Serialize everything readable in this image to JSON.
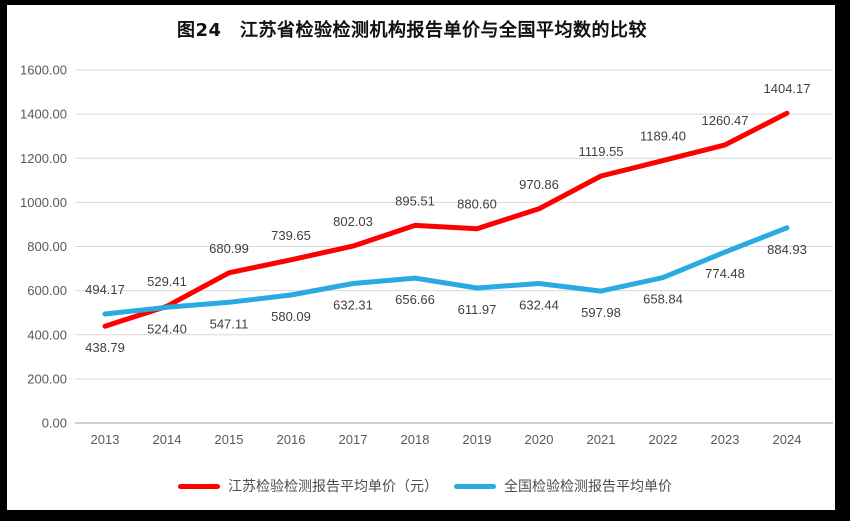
{
  "panel": {
    "background": "#ffffff",
    "border_color": "#000000"
  },
  "chart_data": {
    "type": "line",
    "title": "图24　江苏省检验检测机构报告单价与全国平均数的比较",
    "categories": [
      "2013",
      "2014",
      "2015",
      "2016",
      "2017",
      "2018",
      "2019",
      "2020",
      "2021",
      "2022",
      "2023",
      "2024"
    ],
    "series": [
      {
        "name": "江苏检验检测报告平均单价（元）",
        "color": "#fe0000",
        "values": [
          438.79,
          529.41,
          680.99,
          739.65,
          802.03,
          895.51,
          880.6,
          970.86,
          1119.55,
          1189.4,
          1260.47,
          1404.17
        ],
        "label_side": "above",
        "label_side_exceptions": {
          "0": "below"
        }
      },
      {
        "name": "全国检验检测报告平均单价",
        "color": "#29abe2",
        "values": [
          494.17,
          524.4,
          547.11,
          580.09,
          632.31,
          656.66,
          611.97,
          632.44,
          597.98,
          658.84,
          774.48,
          884.93
        ],
        "label_side": "below",
        "label_side_exceptions": {
          "0": "above"
        }
      }
    ],
    "ylim": [
      0,
      1600
    ],
    "ytick_step": 200,
    "ytick_labels": [
      "0.00",
      "200.00",
      "400.00",
      "600.00",
      "800.00",
      "1000.00",
      "1200.00",
      "1400.00",
      "1600.00"
    ],
    "xlabel": "",
    "ylabel": "",
    "grid": true,
    "gridline_color": "#d9d9d9",
    "axis_line_color": "#bfbfbf",
    "legend_position": "bottom",
    "data_labels_shown": true
  }
}
